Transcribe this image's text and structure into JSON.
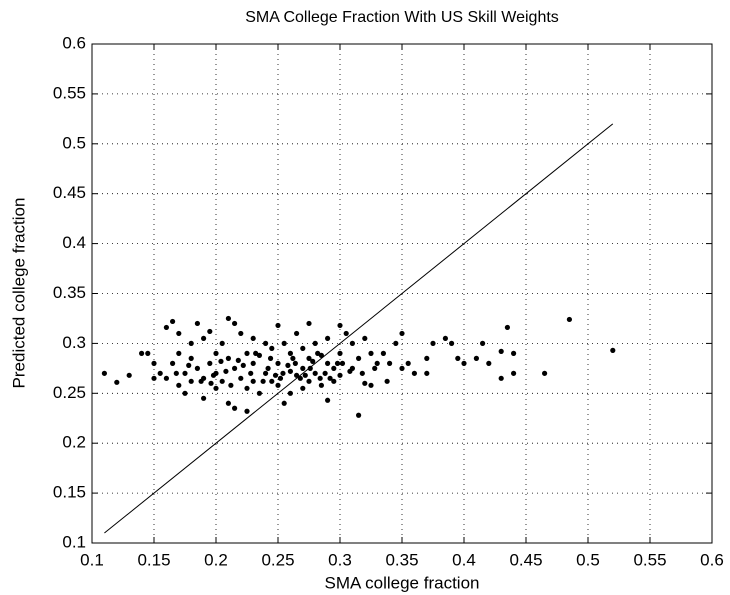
{
  "chart_data": {
    "type": "scatter",
    "title": "SMA College Fraction With US Skill Weights",
    "xlabel": "SMA college fraction",
    "ylabel": "Predicted college fraction",
    "color": "#000000",
    "grid": true,
    "xlim": [
      0.1,
      0.6
    ],
    "ylim": [
      0.1,
      0.6
    ],
    "xticks": [
      0.1,
      0.15,
      0.2,
      0.25,
      0.3,
      0.35,
      0.4,
      0.45,
      0.5,
      0.55,
      0.6
    ],
    "yticks": [
      0.1,
      0.15,
      0.2,
      0.25,
      0.3,
      0.35,
      0.4,
      0.45,
      0.5,
      0.55,
      0.6
    ],
    "reference_line": {
      "x": [
        0.11,
        0.52
      ],
      "y": [
        0.11,
        0.52
      ]
    },
    "x": [
      0.11,
      0.12,
      0.13,
      0.14,
      0.145,
      0.15,
      0.15,
      0.155,
      0.16,
      0.16,
      0.165,
      0.165,
      0.17,
      0.17,
      0.17,
      0.175,
      0.175,
      0.18,
      0.18,
      0.18,
      0.185,
      0.185,
      0.19,
      0.19,
      0.19,
      0.195,
      0.195,
      0.2,
      0.2,
      0.2,
      0.205,
      0.205,
      0.21,
      0.21,
      0.21,
      0.215,
      0.215,
      0.215,
      0.22,
      0.22,
      0.225,
      0.225,
      0.225,
      0.23,
      0.23,
      0.23,
      0.235,
      0.235,
      0.24,
      0.24,
      0.245,
      0.245,
      0.25,
      0.25,
      0.25,
      0.255,
      0.255,
      0.26,
      0.26,
      0.26,
      0.265,
      0.265,
      0.27,
      0.27,
      0.27,
      0.275,
      0.275,
      0.275,
      0.28,
      0.28,
      0.285,
      0.285,
      0.29,
      0.29,
      0.29,
      0.295,
      0.295,
      0.3,
      0.3,
      0.3,
      0.305,
      0.31,
      0.31,
      0.315,
      0.315,
      0.32,
      0.32,
      0.325,
      0.325,
      0.33,
      0.335,
      0.34,
      0.345,
      0.35,
      0.35,
      0.355,
      0.36,
      0.37,
      0.37,
      0.375,
      0.385,
      0.39,
      0.395,
      0.4,
      0.41,
      0.415,
      0.42,
      0.43,
      0.43,
      0.435,
      0.44,
      0.44,
      0.465,
      0.485,
      0.52,
      0.168,
      0.178,
      0.188,
      0.198,
      0.208,
      0.218,
      0.228,
      0.238,
      0.248,
      0.258,
      0.268,
      0.278,
      0.288,
      0.298,
      0.308,
      0.212,
      0.222,
      0.232,
      0.242,
      0.252,
      0.262,
      0.272,
      0.282,
      0.292,
      0.302,
      0.196,
      0.204,
      0.244,
      0.254,
      0.264,
      0.276,
      0.284,
      0.318,
      0.328,
      0.338
    ],
    "values": [
      0.27,
      0.261,
      0.268,
      0.29,
      0.29,
      0.28,
      0.265,
      0.27,
      0.316,
      0.265,
      0.322,
      0.28,
      0.31,
      0.29,
      0.258,
      0.27,
      0.25,
      0.3,
      0.285,
      0.262,
      0.32,
      0.275,
      0.305,
      0.265,
      0.245,
      0.312,
      0.28,
      0.29,
      0.27,
      0.255,
      0.3,
      0.262,
      0.325,
      0.285,
      0.24,
      0.32,
      0.275,
      0.235,
      0.31,
      0.265,
      0.29,
      0.255,
      0.232,
      0.305,
      0.28,
      0.262,
      0.288,
      0.25,
      0.3,
      0.27,
      0.295,
      0.262,
      0.318,
      0.28,
      0.258,
      0.3,
      0.24,
      0.29,
      0.272,
      0.25,
      0.31,
      0.268,
      0.295,
      0.275,
      0.255,
      0.32,
      0.285,
      0.262,
      0.3,
      0.27,
      0.288,
      0.258,
      0.305,
      0.28,
      0.243,
      0.275,
      0.262,
      0.318,
      0.29,
      0.268,
      0.31,
      0.3,
      0.275,
      0.228,
      0.285,
      0.305,
      0.26,
      0.29,
      0.258,
      0.28,
      0.29,
      0.28,
      0.3,
      0.31,
      0.275,
      0.28,
      0.27,
      0.285,
      0.27,
      0.3,
      0.305,
      0.3,
      0.285,
      0.28,
      0.285,
      0.3,
      0.28,
      0.292,
      0.265,
      0.316,
      0.29,
      0.27,
      0.27,
      0.324,
      0.293,
      0.27,
      0.278,
      0.262,
      0.268,
      0.272,
      0.283,
      0.27,
      0.262,
      0.268,
      0.278,
      0.265,
      0.282,
      0.27,
      0.28,
      0.272,
      0.258,
      0.278,
      0.29,
      0.275,
      0.265,
      0.285,
      0.268,
      0.29,
      0.265,
      0.28,
      0.26,
      0.282,
      0.285,
      0.27,
      0.28,
      0.275,
      0.265,
      0.27,
      0.275,
      0.262
    ]
  }
}
